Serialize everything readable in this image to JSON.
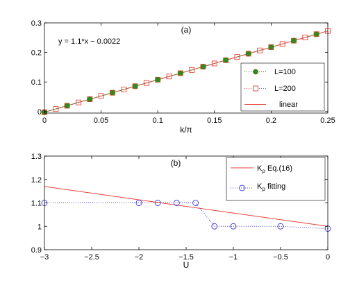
{
  "chart_data": [
    {
      "type": "line",
      "panel_label": "(a)",
      "annotation": "y = 1.1*x − 0.0022",
      "xlabel": "k/π",
      "ylabel": "",
      "xlim": [
        0,
        0.25
      ],
      "ylim": [
        -0.005,
        0.3
      ],
      "xticks": [
        0,
        0.05,
        0.1,
        0.15,
        0.2,
        0.25
      ],
      "xtick_labels": [
        "0",
        "0.05",
        "0.1",
        "0.15",
        "0.2",
        "0.25"
      ],
      "yticks": [
        0,
        0.1,
        0.2,
        0.3
      ],
      "ytick_labels": [
        "0",
        "0.1",
        "0.2",
        "0.3"
      ],
      "grid": false,
      "legend_position": "bottom-right",
      "series": [
        {
          "name": "L=100",
          "marker": "filled-circle",
          "line": "dotted",
          "color": "#2e8b22",
          "edge_color": "#6b6b00",
          "x": [
            0,
            0.02,
            0.04,
            0.06,
            0.08,
            0.1,
            0.12,
            0.14,
            0.16,
            0.18,
            0.2,
            0.22,
            0.24
          ],
          "y": [
            -0.0022,
            0.0198,
            0.0418,
            0.0638,
            0.0858,
            0.1078,
            0.1298,
            0.1518,
            0.1738,
            0.1958,
            0.2178,
            0.2398,
            0.2618
          ]
        },
        {
          "name": "L=200",
          "marker": "open-square",
          "line": "dotted",
          "color": "#e8403a",
          "x": [
            0,
            0.01,
            0.02,
            0.03,
            0.04,
            0.05,
            0.06,
            0.07,
            0.08,
            0.09,
            0.1,
            0.11,
            0.12,
            0.13,
            0.14,
            0.15,
            0.16,
            0.17,
            0.18,
            0.19,
            0.2,
            0.21,
            0.22,
            0.23,
            0.24,
            0.25
          ],
          "y": [
            -0.0022,
            0.0088,
            0.0198,
            0.0308,
            0.0418,
            0.0528,
            0.0638,
            0.0748,
            0.0858,
            0.0968,
            0.1078,
            0.1188,
            0.1298,
            0.1408,
            0.1518,
            0.1628,
            0.1738,
            0.1848,
            0.1958,
            0.2068,
            0.2178,
            0.2288,
            0.2398,
            0.2508,
            0.2618,
            0.2728
          ]
        },
        {
          "name": "linear",
          "marker": "none",
          "line": "solid",
          "color": "#e8403a",
          "x": [
            0,
            0.25
          ],
          "y": [
            -0.0022,
            0.2728
          ]
        }
      ]
    },
    {
      "type": "line",
      "panel_label": "(b)",
      "xlabel": "U",
      "ylabel": "",
      "xlim": [
        -3,
        0
      ],
      "ylim": [
        0.9,
        1.3
      ],
      "xticks": [
        -3,
        -2.5,
        -2,
        -1.5,
        -1,
        -0.5,
        0
      ],
      "xtick_labels": [
        "−3",
        "−2.5",
        "−2",
        "−1.5",
        "−1",
        "−0.5",
        "0"
      ],
      "yticks": [
        0.9,
        1,
        1.1,
        1.2,
        1.3
      ],
      "ytick_labels": [
        "0.9",
        "1",
        "1.1",
        "1.2",
        "1.3"
      ],
      "grid": false,
      "legend_position": "top-right",
      "series": [
        {
          "name_main": "K",
          "name_sub": "ρ",
          "name_rest": " Eq.(16)",
          "marker": "none",
          "line": "solid",
          "color": "#e8403a",
          "x": [
            -3,
            0
          ],
          "y": [
            1.17,
            1.0
          ]
        },
        {
          "name_main": "K",
          "name_sub": "ρ",
          "name_rest": " fitting",
          "marker": "open-circle",
          "line": "dotted",
          "color": "#3b3bd8",
          "x": [
            -3,
            -2,
            -1.8,
            -1.6,
            -1.4,
            -1.2,
            -1,
            -0.5,
            0
          ],
          "y": [
            1.1,
            1.1,
            1.1,
            1.1,
            1.1,
            1.0,
            1.0,
            1.0,
            0.99
          ]
        }
      ]
    }
  ]
}
